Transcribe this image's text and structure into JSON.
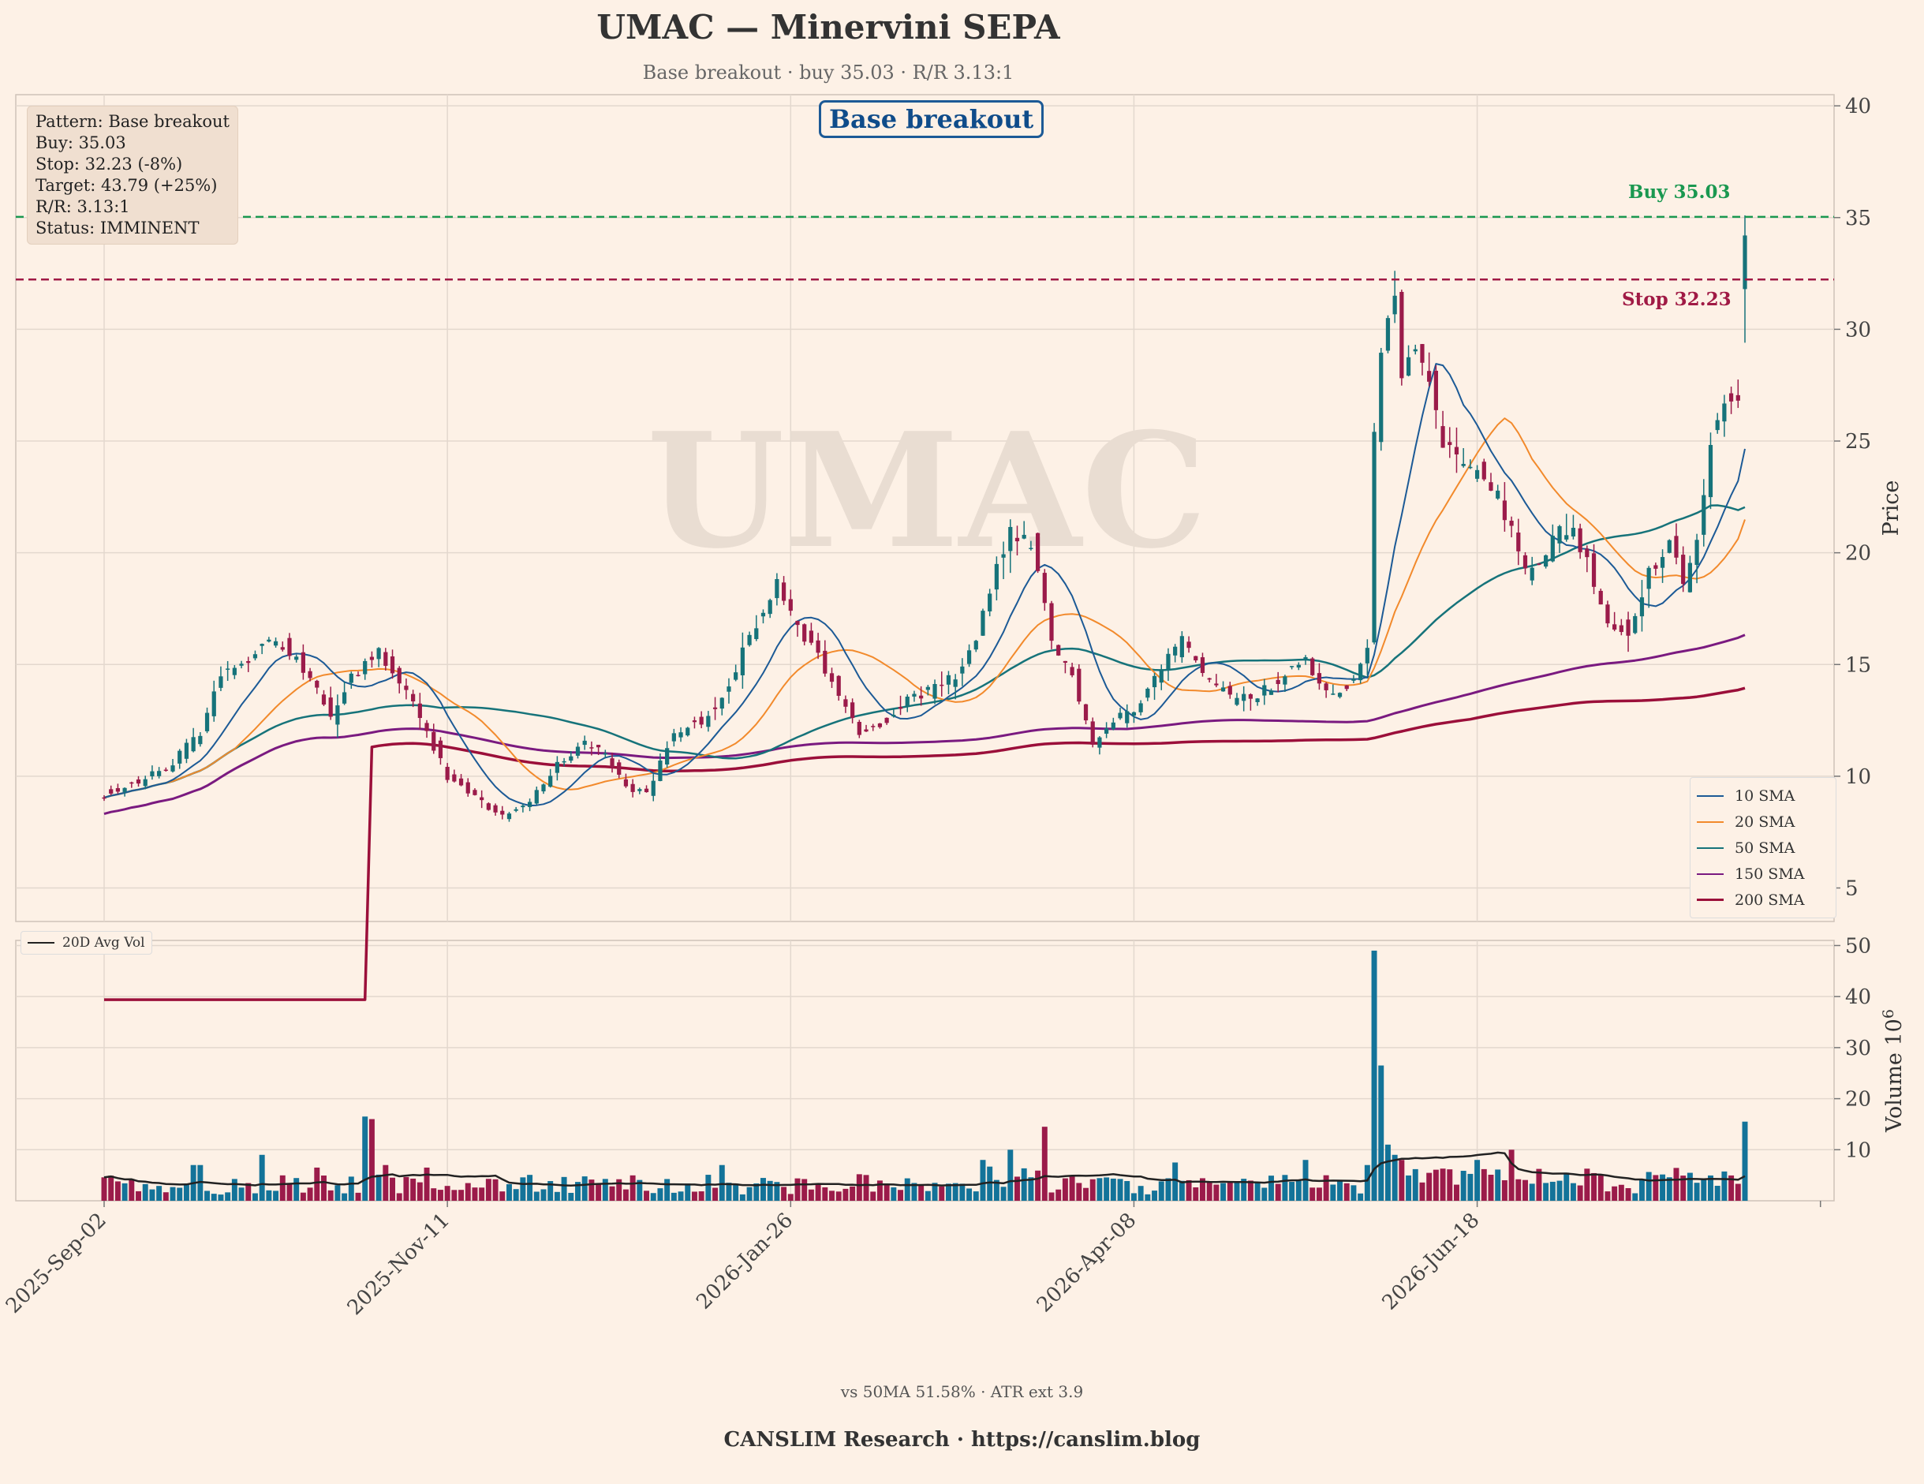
{
  "header": {
    "title": "UMAC — Minervini SEPA",
    "subtitle": "Base breakout · buy 35.03 · R/R 3.13:1"
  },
  "info_box": {
    "lines": [
      "Pattern: Base breakout",
      "Buy: 35.03",
      "Stop: 32.23 (-8%)",
      "Target: 43.79 (+25%)",
      "R/R: 3.13:1",
      "Status: IMMINENT"
    ]
  },
  "pattern_badge": "Base breakout",
  "watermark": "UMAC",
  "levels": {
    "buy": {
      "label": "Buy 35.03",
      "value": 35.03,
      "color": "#1a9850"
    },
    "stop": {
      "label": "Stop 32.23",
      "value": 32.23,
      "color": "#a01a45"
    }
  },
  "legend": {
    "items": [
      {
        "label": "10 SMA",
        "color": "#1c5a96"
      },
      {
        "label": "20 SMA",
        "color": "#f28a2c"
      },
      {
        "label": "50 SMA",
        "color": "#16737a"
      },
      {
        "label": "150 SMA",
        "color": "#7a1a80"
      },
      {
        "label": "200 SMA",
        "color": "#9b0f3a"
      }
    ],
    "volume_avg_label": "20D Avg Vol"
  },
  "footer": {
    "note": "vs 50MA 51.58% · ATR ext 3.9",
    "brand": "CANSLIM Research  ·  https://canslim.blog"
  },
  "colors": {
    "up": "#16737a",
    "down": "#9b1b4a",
    "volume_up": "#137399",
    "volume_down": "#9b1b4a",
    "background": "#fdf1e6",
    "grid": "#e3d8ce"
  },
  "chart_data": {
    "type": "candlestick",
    "price_axis": {
      "label": "Price",
      "ylim": [
        3.5,
        40.5
      ],
      "ticks": [
        5,
        10,
        15,
        20,
        25,
        30,
        35,
        40
      ]
    },
    "volume_axis": {
      "label": "Volume",
      "unit_label": "10",
      "unit_exp": "6",
      "ylim": [
        0,
        50
      ],
      "ticks": [
        10,
        20,
        30,
        40,
        50
      ]
    },
    "x_axis": {
      "ticks": [
        "2025-Sep-02",
        "2025-Nov-11",
        "2026-Jan-26",
        "2026-Apr-08",
        "2026-Jun-18"
      ],
      "tick_index": [
        0,
        50,
        100,
        150,
        200
      ]
    },
    "grid": true,
    "bar_count": 240,
    "anchors": [
      [
        0,
        9.2
      ],
      [
        5,
        9.8
      ],
      [
        10,
        10.6
      ],
      [
        14,
        12.0
      ],
      [
        17,
        14.5
      ],
      [
        20,
        15.0
      ],
      [
        23,
        16.0
      ],
      [
        26,
        15.8
      ],
      [
        28,
        15.2
      ],
      [
        31,
        14.0
      ],
      [
        33,
        12.5
      ],
      [
        36,
        14.5
      ],
      [
        40,
        15.5
      ],
      [
        44,
        14.0
      ],
      [
        47,
        12.0
      ],
      [
        50,
        10.0
      ],
      [
        54,
        9.0
      ],
      [
        58,
        8.2
      ],
      [
        62,
        9.0
      ],
      [
        66,
        10.5
      ],
      [
        70,
        11.5
      ],
      [
        73,
        11.0
      ],
      [
        76,
        9.5
      ],
      [
        79,
        9.2
      ],
      [
        83,
        12.0
      ],
      [
        87,
        12.5
      ],
      [
        90,
        13.5
      ],
      [
        93,
        15.5
      ],
      [
        96,
        17.5
      ],
      [
        98,
        18.5
      ],
      [
        101,
        16.5
      ],
      [
        104,
        15.5
      ],
      [
        107,
        13.5
      ],
      [
        110,
        12.0
      ],
      [
        114,
        12.5
      ],
      [
        117,
        13.5
      ],
      [
        120,
        13.8
      ],
      [
        124,
        14.5
      ],
      [
        127,
        16.0
      ],
      [
        130,
        19.5
      ],
      [
        132,
        21.0
      ],
      [
        135,
        20.5
      ],
      [
        138,
        16.0
      ],
      [
        141,
        14.5
      ],
      [
        144,
        11.5
      ],
      [
        147,
        12.5
      ],
      [
        150,
        13.0
      ],
      [
        153,
        14.5
      ],
      [
        157,
        16.0
      ],
      [
        160,
        14.5
      ],
      [
        164,
        13.5
      ],
      [
        167,
        13.5
      ],
      [
        170,
        14.0
      ],
      [
        173,
        15.0
      ],
      [
        175,
        15.5
      ],
      [
        177,
        14.0
      ],
      [
        180,
        13.8
      ],
      [
        182,
        14.5
      ],
      [
        184,
        16.0
      ],
      [
        185,
        25.0
      ],
      [
        186,
        29.0
      ],
      [
        188,
        31.5
      ],
      [
        189,
        28.0
      ],
      [
        191,
        29.5
      ],
      [
        193,
        27.5
      ],
      [
        195,
        25.0
      ],
      [
        198,
        24.0
      ],
      [
        201,
        23.5
      ],
      [
        203,
        22.5
      ],
      [
        205,
        21.0
      ],
      [
        207,
        19.0
      ],
      [
        209,
        19.5
      ],
      [
        212,
        21.0
      ],
      [
        214,
        21.0
      ],
      [
        216,
        19.5
      ],
      [
        219,
        17.0
      ],
      [
        222,
        16.5
      ],
      [
        225,
        19.0
      ],
      [
        228,
        20.5
      ],
      [
        230,
        18.5
      ],
      [
        232,
        20.5
      ],
      [
        234,
        25.0
      ],
      [
        236,
        26.5
      ],
      [
        238,
        27.0
      ],
      [
        239,
        34.2
      ]
    ],
    "volume_spikes": [
      {
        "index": 38,
        "value": 16.5
      },
      {
        "index": 39,
        "value": 16
      },
      {
        "index": 41,
        "value": 7
      },
      {
        "index": 47,
        "value": 6.5
      },
      {
        "index": 23,
        "value": 9
      },
      {
        "index": 31,
        "value": 6.5
      },
      {
        "index": 13,
        "value": 7
      },
      {
        "index": 14,
        "value": 7
      },
      {
        "index": 90,
        "value": 7
      },
      {
        "index": 128,
        "value": 8
      },
      {
        "index": 132,
        "value": 10
      },
      {
        "index": 137,
        "value": 14.5
      },
      {
        "index": 156,
        "value": 7.5
      },
      {
        "index": 175,
        "value": 8
      },
      {
        "index": 184,
        "value": 7
      },
      {
        "index": 185,
        "value": 49
      },
      {
        "index": 186,
        "value": 26.5
      },
      {
        "index": 187,
        "value": 11
      },
      {
        "index": 188,
        "value": 9
      },
      {
        "index": 189,
        "value": 8
      },
      {
        "index": 200,
        "value": 8
      },
      {
        "index": 205,
        "value": 10
      },
      {
        "index": 239,
        "value": 15.5
      }
    ]
  }
}
